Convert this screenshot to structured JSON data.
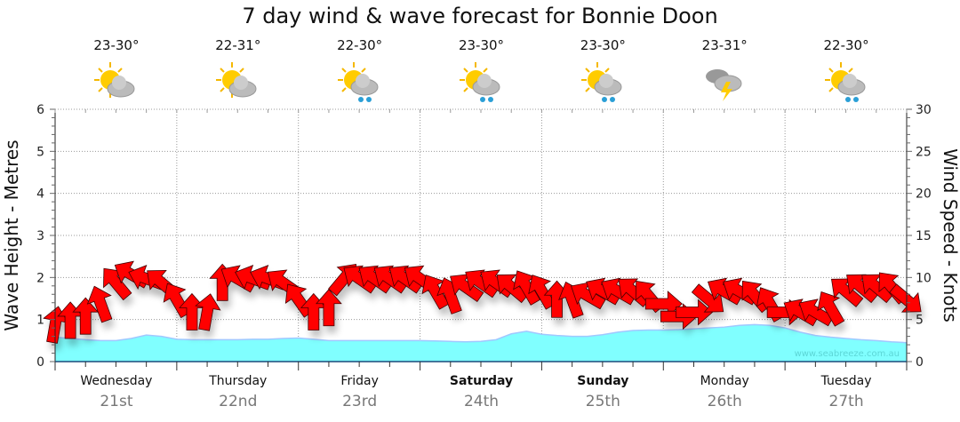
{
  "title": "7 day wind & wave forecast for Bonnie Doon",
  "days": [
    {
      "name": "Wednesday",
      "date": "21st",
      "temp": "23-30°",
      "icon": "partly-cloudy-icon",
      "bold": false
    },
    {
      "name": "Thursday",
      "date": "22nd",
      "temp": "22-31°",
      "icon": "partly-cloudy-icon",
      "bold": false
    },
    {
      "name": "Friday",
      "date": "23rd",
      "temp": "22-30°",
      "icon": "showers-icon",
      "bold": false
    },
    {
      "name": "Saturday",
      "date": "24th",
      "temp": "23-30°",
      "icon": "showers-icon",
      "bold": true
    },
    {
      "name": "Sunday",
      "date": "25th",
      "temp": "23-30°",
      "icon": "showers-icon",
      "bold": true
    },
    {
      "name": "Monday",
      "date": "26th",
      "temp": "23-31°",
      "icon": "thunderstorm-icon",
      "bold": false
    },
    {
      "name": "Tuesday",
      "date": "27th",
      "temp": "22-30°",
      "icon": "showers-icon",
      "bold": false
    }
  ],
  "watermark": "www.seabreeze.com.au",
  "colors": {
    "wave": "#80ffff",
    "wave_line": "#a0c8ff",
    "arrow": "#ff0000"
  },
  "chart_data": {
    "type": "area",
    "title": "7 day wind & wave forecast for Bonnie Doon",
    "ylabel": "Wave Height - Metres",
    "y2label": "Wind Speed - Knots",
    "ylim": [
      0,
      6
    ],
    "y2lim": [
      0,
      30
    ],
    "yticks": [
      "0",
      "1",
      "2",
      "3",
      "4",
      "5",
      "6"
    ],
    "y2ticks": [
      "0",
      "5",
      "10",
      "15",
      "20",
      "25",
      "30"
    ],
    "x_unit": "hours from start, 3-hourly",
    "grid": true,
    "wave_height": [
      0.58,
      0.55,
      0.52,
      0.5,
      0.5,
      0.55,
      0.63,
      0.6,
      0.53,
      0.52,
      0.52,
      0.52,
      0.52,
      0.53,
      0.53,
      0.55,
      0.56,
      0.53,
      0.5,
      0.5,
      0.5,
      0.5,
      0.5,
      0.5,
      0.5,
      0.49,
      0.48,
      0.47,
      0.48,
      0.52,
      0.66,
      0.72,
      0.65,
      0.62,
      0.6,
      0.6,
      0.64,
      0.7,
      0.74,
      0.75,
      0.75,
      0.76,
      0.78,
      0.8,
      0.82,
      0.86,
      0.88,
      0.86,
      0.8,
      0.7,
      0.62,
      0.58,
      0.55,
      0.52,
      0.5,
      0.47,
      0.45
    ],
    "wind_speed": [
      5,
      5.5,
      6,
      7.5,
      10,
      11,
      10.5,
      10,
      8,
      6.5,
      6.5,
      10,
      10.5,
      10.5,
      10.5,
      10,
      8,
      6.5,
      7,
      10.5,
      10.5,
      10.5,
      10.5,
      10.5,
      10.5,
      9,
      8.5,
      9.5,
      10,
      10,
      9.5,
      9.5,
      9,
      8,
      8,
      8.5,
      9,
      9,
      9,
      8.5,
      7.5,
      6,
      6.5,
      8,
      9,
      9,
      8.5,
      7.5,
      6.5,
      6.5,
      6.5,
      7,
      9,
      9.5,
      9.5,
      9.5,
      8
    ],
    "wind_dir": [
      10,
      0,
      0,
      -20,
      -40,
      -60,
      -70,
      -50,
      -30,
      0,
      10,
      0,
      -60,
      -70,
      -70,
      -55,
      -35,
      0,
      0,
      40,
      -55,
      -55,
      -55,
      -55,
      -55,
      -30,
      -20,
      -55,
      -55,
      -55,
      -50,
      -30,
      -30,
      0,
      -20,
      -60,
      -60,
      -60,
      -50,
      -40,
      90,
      90,
      90,
      130,
      -60,
      -60,
      -40,
      -30,
      90,
      -60,
      -60,
      -30,
      -50,
      -50,
      -50,
      -40,
      130
    ]
  }
}
